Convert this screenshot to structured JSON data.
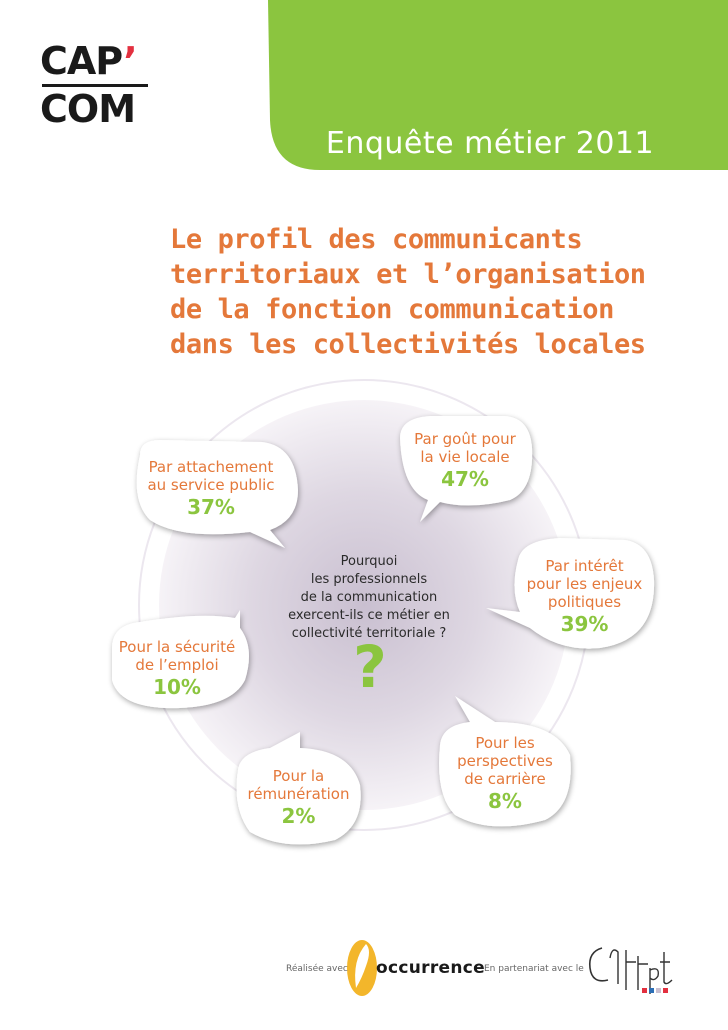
{
  "brand": {
    "logo_line1": "CAP",
    "logo_apostrophe": "’",
    "logo_line2": "COM"
  },
  "header": {
    "text": "Enquête métier 2011"
  },
  "title": {
    "lines": [
      "Le profil des communicants",
      "territoriaux et l’organisation",
      "de la fonction communication",
      "dans les collectivités locales"
    ]
  },
  "center": {
    "question_lines": [
      "Pourquoi",
      "les professionnels",
      "de la communication",
      "exercent-ils ce métier en",
      "collectivité territoriale ?"
    ],
    "question_mark": "?"
  },
  "reasons": [
    {
      "lines": [
        "Par attachement",
        "au service public"
      ],
      "value": "37%"
    },
    {
      "lines": [
        "Par goût pour",
        "la vie locale"
      ],
      "value": "47%"
    },
    {
      "lines": [
        "Par intérêt",
        "pour les enjeux",
        "politiques"
      ],
      "value": "39%"
    },
    {
      "lines": [
        "Pour la sécurité",
        "de l’emploi"
      ],
      "value": "10%"
    },
    {
      "lines": [
        "Pour les",
        "perspectives",
        "de carrière"
      ],
      "value": "8%"
    },
    {
      "lines": [
        "Pour la",
        "rémunération"
      ],
      "value": "2%"
    }
  ],
  "footer": {
    "made_with": "Réalisée avec",
    "occurrence": "occurrence",
    "partnership": "En partenariat avec le",
    "cnfpt_logo_text": "cnfpt"
  },
  "colors": {
    "accent_green": "#8bc53f",
    "title_orange": "#e4783a",
    "logo_red": "#e3303f",
    "occurrence_yellow": "#f3b62b"
  }
}
